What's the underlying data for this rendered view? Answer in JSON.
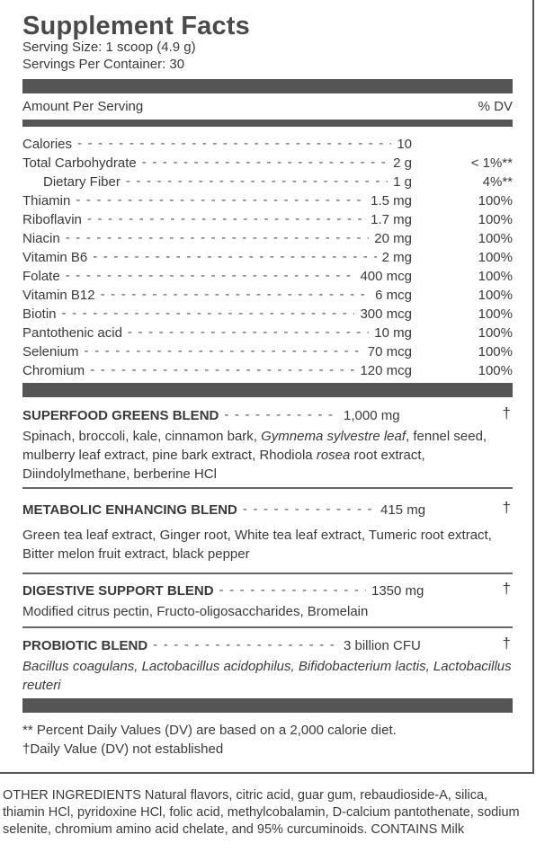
{
  "title": "Supplement Facts",
  "serving_size": "Serving Size: 1 scoop (4.9 g)",
  "servings_per_container": "Servings Per Container: 30",
  "header": {
    "amount": "Amount Per Serving",
    "dv": "% DV"
  },
  "nutrients": [
    {
      "name": "Calories",
      "amount": "10",
      "dv": ""
    },
    {
      "name": "Total Carbohydrate",
      "amount": "2 g",
      "dv": "< 1%**"
    },
    {
      "name": "Dietary Fiber",
      "amount": "1 g",
      "dv": "4%**"
    },
    {
      "name": "Thiamin",
      "amount": "1.5 mg",
      "dv": "100%"
    },
    {
      "name": "Riboflavin",
      "amount": "1.7 mg",
      "dv": "100%"
    },
    {
      "name": "Niacin",
      "amount": "20 mg",
      "dv": "100%"
    },
    {
      "name": "Vitamin B6",
      "amount": "2 mg",
      "dv": "100%"
    },
    {
      "name": "Folate",
      "amount": "400 mcg",
      "dv": "100%"
    },
    {
      "name": "Vitamin B12",
      "amount": "6 mcg",
      "dv": "100%"
    },
    {
      "name": "Biotin",
      "amount": "300 mcg",
      "dv": "100%"
    },
    {
      "name": "Pantothenic acid",
      "amount": "10 mg",
      "dv": "100%"
    },
    {
      "name": "Selenium",
      "amount": "70 mcg",
      "dv": "100%"
    },
    {
      "name": "Chromium",
      "amount": "120 mcg",
      "dv": "100%"
    }
  ],
  "blends": [
    {
      "name": "SUPERFOOD GREENS BLEND",
      "amount": "1,000 mg",
      "dagger": "†",
      "desc_html": "Spinach, broccoli, kale, cinnamon bark, <i>Gymnema sylvestre leaf</i>, fennel seed, mulberry leaf extract, pine bark extract, Rhodiola <i>rosea</i> root extract, Diindolylmethane, berberine HCl"
    },
    {
      "name": "METABOLIC ENHANCING BLEND",
      "amount": "415 mg",
      "dagger": "†",
      "desc_html": "Green tea leaf extract, Ginger root, White tea leaf extract, Tumeric root extract, Bitter melon fruit extract, black pepper"
    },
    {
      "name": "DIGESTIVE SUPPORT BLEND",
      "amount": "1350 mg",
      "dagger": "†",
      "desc_html": "Modified citrus pectin, Fructo-oligosaccharides, Bromelain"
    },
    {
      "name": "PROBIOTIC BLEND",
      "amount": "3 billion CFU",
      "dagger": "†",
      "desc_html": "<i>Bacillus coagulans, Lactobacillus acidophilus, Bifidobacterium lactis, Lactobacillus reuteri</i>"
    }
  ],
  "footnotes": {
    "dv_note": "** Percent Daily Values (DV) are based on a 2,000 calorie diet.",
    "dagger_note": "†Daily Value (DV) not established"
  },
  "other_ingredients": "OTHER INGREDIENTS Natural flavors, citric acid, guar gum, rebaudioside-A, silica, thiamin HCl, pyridoxine HCl, folic acid, methylcobalamin, D-calcium pantothenate, sodium selenite, chromium amino acid chelate, and 95% curcuminoids. CONTAINS Milk"
}
